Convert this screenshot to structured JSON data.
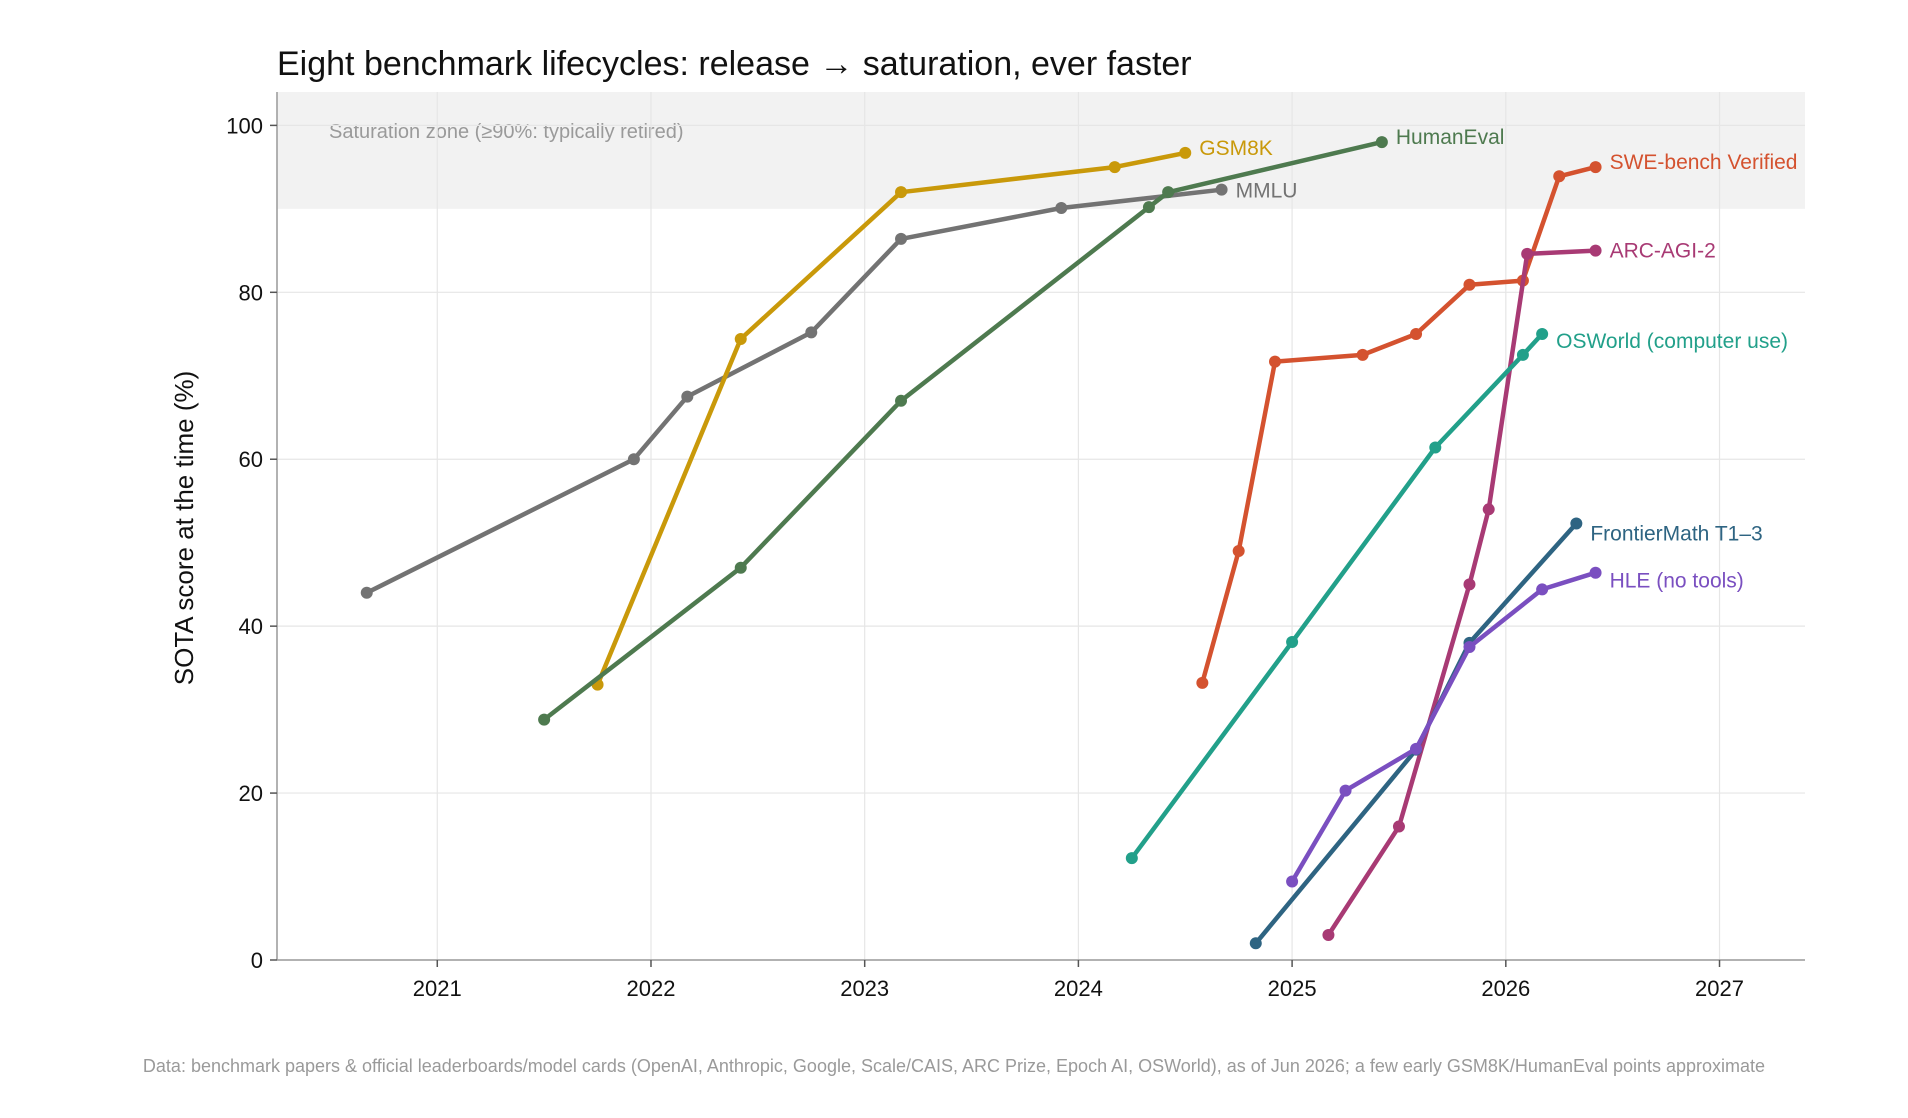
{
  "chart_data": {
    "type": "line",
    "title": "Eight benchmark lifecycles: release → saturation, ever faster",
    "xlabel": "",
    "ylabel": "SOTA score at the time (%)",
    "xlim": [
      2020.25,
      2027.4
    ],
    "ylim": [
      0,
      104
    ],
    "x_ticks": [
      2021,
      2022,
      2023,
      2024,
      2025,
      2026,
      2027
    ],
    "y_ticks": [
      0,
      20,
      40,
      60,
      80,
      100
    ],
    "grid": true,
    "legend": "inline labels at series ends",
    "saturation_zone": {
      "from": 90,
      "to": 104,
      "label": "Saturation zone (≥90%: typically retired)"
    },
    "footnote": "Data: benchmark papers & official leaderboards/model cards (OpenAI, Anthropic, Google, Scale/CAIS, ARC Prize, Epoch AI, OSWorld), as of Jun 2026; a few early GSM8K/HumanEval points approximate",
    "series": [
      {
        "name": "MMLU",
        "color": "#737373",
        "x": [
          2020.67,
          2021.92,
          2022.17,
          2022.75,
          2023.17,
          2023.92,
          2024.67
        ],
        "y": [
          44,
          60,
          67.5,
          75.2,
          86.4,
          90.1,
          92.3
        ]
      },
      {
        "name": "GSM8K",
        "color": "#c9990a",
        "x": [
          2021.75,
          2022.42,
          2023.17,
          2024.17,
          2024.5
        ],
        "y": [
          33,
          74.4,
          92,
          95,
          96.7
        ]
      },
      {
        "name": "HumanEval",
        "color": "#4e7a4f",
        "x": [
          2021.5,
          2022.42,
          2023.17,
          2024.33,
          2024.42,
          2025.42
        ],
        "y": [
          28.8,
          47,
          67,
          90.2,
          92,
          98
        ]
      },
      {
        "name": "SWE-bench Verified",
        "color": "#d4522f",
        "x": [
          2024.58,
          2024.75,
          2024.92,
          2025.33,
          2025.58,
          2025.83,
          2026.08,
          2026.25,
          2026.42
        ],
        "y": [
          33.2,
          49,
          71.7,
          72.5,
          75,
          80.9,
          81.4,
          93.9,
          95
        ]
      },
      {
        "name": "ARC-AGI-2",
        "color": "#a83a74",
        "x": [
          2025.17,
          2025.5,
          2025.83,
          2025.92,
          2026.1,
          2026.42
        ],
        "y": [
          3,
          16,
          45,
          54,
          84.6,
          85
        ]
      },
      {
        "name": "OSWorld (computer use)",
        "color": "#22a08a",
        "x": [
          2024.25,
          2025.0,
          2025.67,
          2026.08,
          2026.17
        ],
        "y": [
          12.2,
          38.1,
          61.4,
          72.5,
          75
        ]
      },
      {
        "name": "FrontierMath T1–3",
        "color": "#2e6482",
        "x": [
          2024.83,
          2025.58,
          2025.83,
          2026.33
        ],
        "y": [
          2,
          25.2,
          38,
          52.3
        ]
      },
      {
        "name": "HLE (no tools)",
        "color": "#7a4fc0",
        "x": [
          2025.0,
          2025.25,
          2025.58,
          2025.83,
          2026.17,
          2026.42
        ],
        "y": [
          9.4,
          20.3,
          25.3,
          37.5,
          44.4,
          46.4
        ]
      }
    ]
  }
}
